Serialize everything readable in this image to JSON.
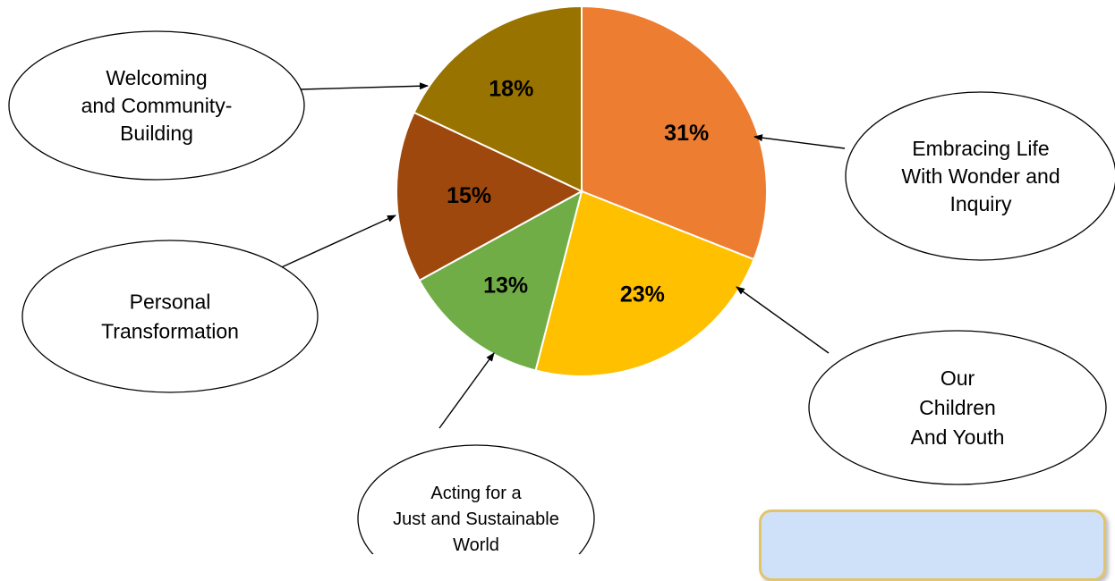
{
  "chart_data": {
    "type": "pie",
    "title": "",
    "slices": [
      {
        "label": "Embracing Life With Wonder and Inquiry",
        "value": 31,
        "value_label": "31%",
        "color": "#ed7d31"
      },
      {
        "label": "Our Children And Youth",
        "value": 23,
        "value_label": "23%",
        "color": "#ffc000"
      },
      {
        "label": "Acting for a Just and Sustainable World",
        "value": 13,
        "value_label": "13%",
        "color": "#70ad47"
      },
      {
        "label": "Personal Transformation",
        "value": 15,
        "value_label": "15%",
        "color": "#9e480e"
      },
      {
        "label": "Welcoming and Community-Building",
        "value": 18,
        "value_label": "18%",
        "color": "#997300"
      }
    ],
    "start_angle": "12 o'clock",
    "direction": "clockwise"
  },
  "callouts": [
    {
      "lines": [
        "Welcoming",
        "and Community-",
        "Building"
      ]
    },
    {
      "lines": [
        "Embracing Life",
        "With Wonder and",
        "Inquiry"
      ]
    },
    {
      "lines": [
        "Personal",
        "Transformation"
      ]
    },
    {
      "lines": [
        "Our",
        "Children",
        "And Youth"
      ]
    },
    {
      "lines": [
        "Acting for a",
        "Just and Sustainable",
        "World"
      ]
    }
  ],
  "note_box": {
    "fill": "#cfe1f9",
    "border": "#e2c46a"
  }
}
